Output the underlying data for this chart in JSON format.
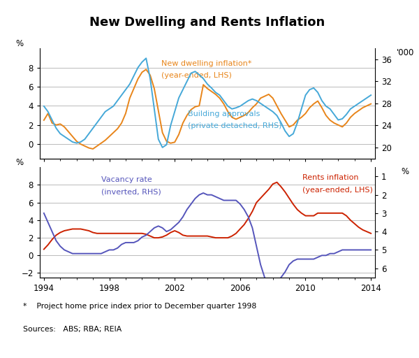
{
  "title": "New Dwelling and Rents Inflation",
  "footnote": "*    Project home price index prior to December quarter 1998",
  "sources": "Sources:   ABS; RBA; REIA",
  "top": {
    "lhs_label": "%",
    "rhs_label": "'000",
    "ylim_lhs": [
      -1.5,
      10
    ],
    "ylim_rhs": [
      18,
      38
    ],
    "yticks_lhs": [
      0,
      2,
      4,
      6,
      8
    ],
    "yticks_rhs": [
      20,
      24,
      28,
      32,
      36
    ],
    "new_dwelling_label": "New dwelling inflation*",
    "new_dwelling_label2": "(year-ended, LHS)",
    "building_approvals_label": "Building approvals",
    "building_approvals_label2": "(private detached, RHS)",
    "new_dwelling_color": "#E8851A",
    "building_approvals_color": "#45A8D8"
  },
  "bottom": {
    "lhs_label": "%",
    "rhs_label": "%",
    "ylim_lhs": [
      -2.5,
      10
    ],
    "ylim_rhs": [
      0.5,
      6.5
    ],
    "yticks_lhs": [
      -2,
      0,
      2,
      4,
      6,
      8
    ],
    "yticks_rhs": [
      1,
      2,
      3,
      4,
      5,
      6
    ],
    "rents_label": "Rents inflation",
    "rents_label2": "(year-ended, LHS)",
    "vacancy_label": "Vacancy rate",
    "vacancy_label2": "(inverted, RHS)",
    "rents_color": "#CC2200",
    "vacancy_color": "#5555BB"
  },
  "new_dwelling": {
    "x": [
      1994.0,
      1994.25,
      1994.5,
      1994.75,
      1995.0,
      1995.25,
      1995.5,
      1995.75,
      1996.0,
      1996.25,
      1996.5,
      1996.75,
      1997.0,
      1997.25,
      1997.5,
      1997.75,
      1998.0,
      1998.25,
      1998.5,
      1998.75,
      1999.0,
      1999.25,
      1999.5,
      1999.75,
      2000.0,
      2000.25,
      2000.5,
      2000.75,
      2001.0,
      2001.25,
      2001.5,
      2001.75,
      2002.0,
      2002.25,
      2002.5,
      2002.75,
      2003.0,
      2003.25,
      2003.5,
      2003.75,
      2004.0,
      2004.25,
      2004.5,
      2004.75,
      2005.0,
      2005.25,
      2005.5,
      2005.75,
      2006.0,
      2006.25,
      2006.5,
      2006.75,
      2007.0,
      2007.25,
      2007.5,
      2007.75,
      2008.0,
      2008.25,
      2008.5,
      2008.75,
      2009.0,
      2009.25,
      2009.5,
      2009.75,
      2010.0,
      2010.25,
      2010.5,
      2010.75,
      2011.0,
      2011.25,
      2011.5,
      2011.75,
      2012.0,
      2012.25,
      2012.5,
      2012.75,
      2013.0,
      2013.25,
      2013.5,
      2013.75,
      2014.0
    ],
    "y": [
      2.5,
      3.2,
      2.2,
      2.0,
      2.1,
      1.8,
      1.3,
      0.8,
      0.3,
      0.0,
      -0.2,
      -0.4,
      -0.5,
      -0.2,
      0.1,
      0.4,
      0.8,
      1.2,
      1.6,
      2.2,
      3.2,
      4.8,
      5.8,
      6.8,
      7.5,
      7.8,
      7.2,
      5.8,
      3.5,
      1.2,
      0.3,
      0.1,
      0.2,
      1.0,
      2.2,
      3.0,
      3.6,
      3.9,
      4.0,
      6.2,
      5.8,
      5.5,
      5.2,
      4.8,
      4.2,
      3.4,
      2.8,
      2.6,
      2.8,
      3.0,
      3.3,
      3.8,
      4.2,
      4.8,
      5.0,
      5.2,
      4.8,
      4.0,
      3.2,
      2.5,
      1.8,
      2.0,
      2.5,
      2.8,
      3.2,
      3.8,
      4.2,
      4.5,
      3.8,
      3.0,
      2.5,
      2.2,
      2.0,
      1.8,
      2.2,
      2.8,
      3.2,
      3.5,
      3.8,
      4.0,
      4.2
    ]
  },
  "building_approvals": {
    "x": [
      1994.0,
      1994.25,
      1994.5,
      1994.75,
      1995.0,
      1995.25,
      1995.5,
      1995.75,
      1996.0,
      1996.25,
      1996.5,
      1996.75,
      1997.0,
      1997.25,
      1997.5,
      1997.75,
      1998.0,
      1998.25,
      1998.5,
      1998.75,
      1999.0,
      1999.25,
      1999.5,
      1999.75,
      2000.0,
      2000.25,
      2000.5,
      2000.75,
      2001.0,
      2001.25,
      2001.5,
      2001.75,
      2002.0,
      2002.25,
      2002.5,
      2002.75,
      2003.0,
      2003.25,
      2003.5,
      2003.75,
      2004.0,
      2004.25,
      2004.5,
      2004.75,
      2005.0,
      2005.25,
      2005.5,
      2005.75,
      2006.0,
      2006.25,
      2006.5,
      2006.75,
      2007.0,
      2007.25,
      2007.5,
      2007.75,
      2008.0,
      2008.25,
      2008.5,
      2008.75,
      2009.0,
      2009.25,
      2009.5,
      2009.75,
      2010.0,
      2010.25,
      2010.5,
      2010.75,
      2011.0,
      2011.25,
      2011.5,
      2011.75,
      2012.0,
      2012.25,
      2012.5,
      2012.75,
      2013.0,
      2013.25,
      2013.5,
      2013.75,
      2014.0
    ],
    "y": [
      27.5,
      26.5,
      25.0,
      23.5,
      22.5,
      22.0,
      21.5,
      21.0,
      20.8,
      21.0,
      21.5,
      22.5,
      23.5,
      24.5,
      25.5,
      26.5,
      27.0,
      27.5,
      28.5,
      29.5,
      30.5,
      31.5,
      33.0,
      34.5,
      35.5,
      36.2,
      32.5,
      27.0,
      21.5,
      20.0,
      20.5,
      24.0,
      26.5,
      29.0,
      30.5,
      32.0,
      33.5,
      33.8,
      33.2,
      32.5,
      31.5,
      30.8,
      30.0,
      29.5,
      28.5,
      27.5,
      27.0,
      27.2,
      27.5,
      28.0,
      28.5,
      28.8,
      28.5,
      28.0,
      27.5,
      27.0,
      26.5,
      25.8,
      24.5,
      23.0,
      22.0,
      22.5,
      24.5,
      27.0,
      29.5,
      30.5,
      30.8,
      30.0,
      28.5,
      27.5,
      27.0,
      26.0,
      25.0,
      25.2,
      26.0,
      27.0,
      27.5,
      28.0,
      28.5,
      29.0,
      29.5
    ]
  },
  "rents": {
    "x": [
      1994.0,
      1994.25,
      1994.5,
      1994.75,
      1995.0,
      1995.25,
      1995.5,
      1995.75,
      1996.0,
      1996.25,
      1996.5,
      1996.75,
      1997.0,
      1997.25,
      1997.5,
      1997.75,
      1998.0,
      1998.25,
      1998.5,
      1998.75,
      1999.0,
      1999.25,
      1999.5,
      1999.75,
      2000.0,
      2000.25,
      2000.5,
      2000.75,
      2001.0,
      2001.25,
      2001.5,
      2001.75,
      2002.0,
      2002.25,
      2002.5,
      2002.75,
      2003.0,
      2003.25,
      2003.5,
      2003.75,
      2004.0,
      2004.25,
      2004.5,
      2004.75,
      2005.0,
      2005.25,
      2005.5,
      2005.75,
      2006.0,
      2006.25,
      2006.5,
      2006.75,
      2007.0,
      2007.25,
      2007.5,
      2007.75,
      2008.0,
      2008.25,
      2008.5,
      2008.75,
      2009.0,
      2009.25,
      2009.5,
      2009.75,
      2010.0,
      2010.25,
      2010.5,
      2010.75,
      2011.0,
      2011.25,
      2011.5,
      2011.75,
      2012.0,
      2012.25,
      2012.5,
      2012.75,
      2013.0,
      2013.25,
      2013.5,
      2013.75,
      2014.0
    ],
    "y": [
      0.7,
      1.2,
      1.8,
      2.3,
      2.6,
      2.8,
      2.9,
      3.0,
      3.0,
      3.0,
      2.9,
      2.8,
      2.6,
      2.5,
      2.5,
      2.5,
      2.5,
      2.5,
      2.5,
      2.5,
      2.5,
      2.5,
      2.5,
      2.5,
      2.5,
      2.4,
      2.2,
      2.0,
      2.0,
      2.1,
      2.3,
      2.6,
      2.8,
      2.6,
      2.3,
      2.2,
      2.2,
      2.2,
      2.2,
      2.2,
      2.2,
      2.1,
      2.0,
      2.0,
      2.0,
      2.0,
      2.2,
      2.5,
      3.0,
      3.5,
      4.2,
      5.0,
      6.0,
      6.5,
      7.0,
      7.5,
      8.1,
      8.3,
      7.8,
      7.2,
      6.5,
      5.8,
      5.2,
      4.8,
      4.5,
      4.5,
      4.5,
      4.8,
      4.8,
      4.8,
      4.8,
      4.8,
      4.8,
      4.8,
      4.5,
      4.0,
      3.6,
      3.2,
      2.9,
      2.7,
      2.5
    ]
  },
  "vacancy": {
    "x": [
      1994.0,
      1994.25,
      1994.5,
      1994.75,
      1995.0,
      1995.25,
      1995.5,
      1995.75,
      1996.0,
      1996.25,
      1996.5,
      1996.75,
      1997.0,
      1997.25,
      1997.5,
      1997.75,
      1998.0,
      1998.25,
      1998.5,
      1998.75,
      1999.0,
      1999.25,
      1999.5,
      1999.75,
      2000.0,
      2000.25,
      2000.5,
      2000.75,
      2001.0,
      2001.25,
      2001.5,
      2001.75,
      2002.0,
      2002.25,
      2002.5,
      2002.75,
      2003.0,
      2003.25,
      2003.5,
      2003.75,
      2004.0,
      2004.25,
      2004.5,
      2004.75,
      2005.0,
      2005.25,
      2005.5,
      2005.75,
      2006.0,
      2006.25,
      2006.5,
      2006.75,
      2007.0,
      2007.25,
      2007.5,
      2007.75,
      2008.0,
      2008.25,
      2008.5,
      2008.75,
      2009.0,
      2009.25,
      2009.5,
      2009.75,
      2010.0,
      2010.25,
      2010.5,
      2010.75,
      2011.0,
      2011.25,
      2011.5,
      2011.75,
      2012.0,
      2012.25,
      2012.5,
      2012.75,
      2013.0,
      2013.25,
      2013.5,
      2013.75,
      2014.0
    ],
    "y": [
      3.0,
      3.5,
      4.0,
      4.5,
      4.8,
      5.0,
      5.1,
      5.2,
      5.2,
      5.2,
      5.2,
      5.2,
      5.2,
      5.2,
      5.2,
      5.1,
      5.0,
      5.0,
      4.9,
      4.7,
      4.6,
      4.6,
      4.6,
      4.5,
      4.3,
      4.2,
      4.0,
      3.8,
      3.7,
      3.8,
      4.0,
      3.9,
      3.7,
      3.5,
      3.2,
      2.8,
      2.5,
      2.2,
      2.0,
      1.9,
      2.0,
      2.0,
      2.1,
      2.2,
      2.3,
      2.3,
      2.3,
      2.3,
      2.5,
      2.8,
      3.2,
      3.8,
      4.8,
      5.8,
      6.5,
      6.8,
      6.9,
      6.8,
      6.5,
      6.2,
      5.8,
      5.6,
      5.5,
      5.5,
      5.5,
      5.5,
      5.5,
      5.4,
      5.3,
      5.3,
      5.2,
      5.2,
      5.1,
      5.0,
      5.0,
      5.0,
      5.0,
      5.0,
      5.0,
      5.0,
      5.0
    ]
  },
  "xlim": [
    1993.75,
    2014.25
  ],
  "xticks": [
    1994,
    1998,
    2002,
    2006,
    2010,
    2014
  ],
  "background_color": "#ffffff",
  "grid_color": "#b0b0b0",
  "line_width": 1.4
}
